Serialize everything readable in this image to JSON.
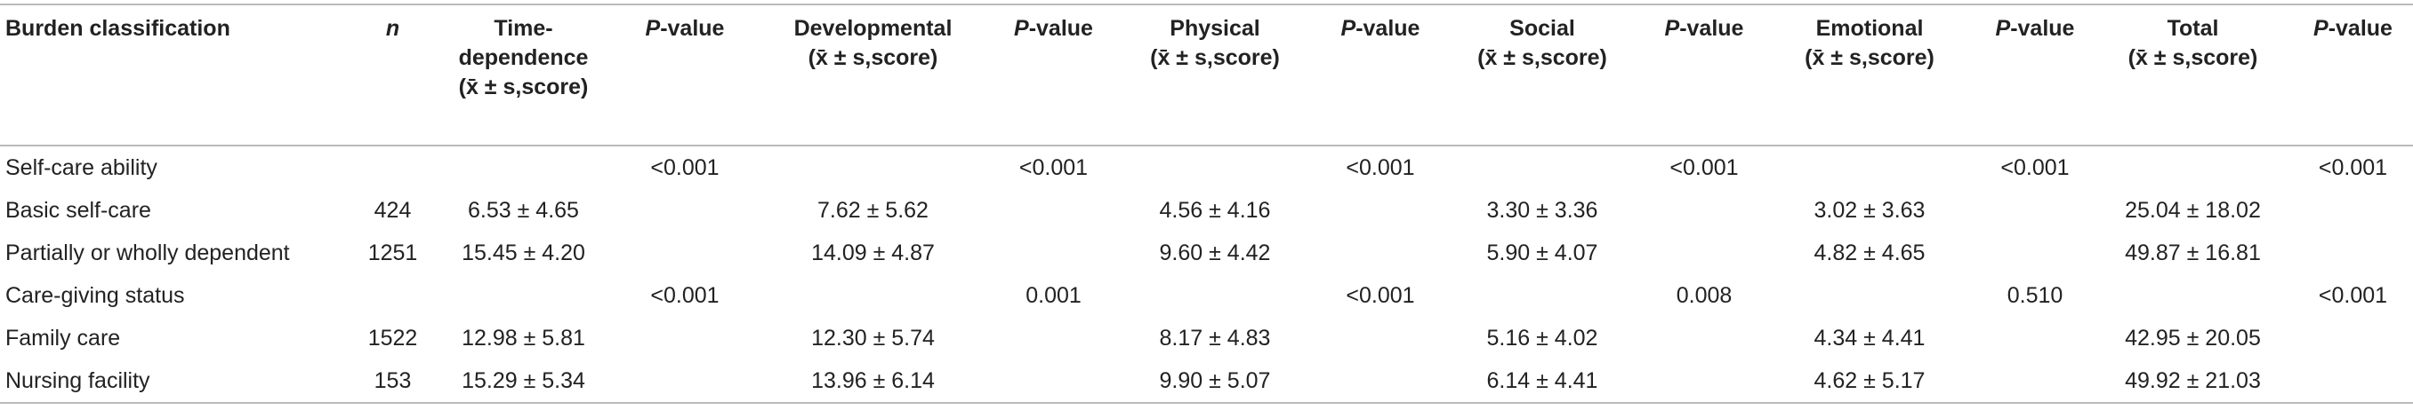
{
  "table": {
    "header": [
      "Burden classification",
      "n",
      "Time-\ndependence\n(x̄ ± s,score)",
      "P-value",
      "Developmental\n(x̄ ± s,score)",
      "P-value",
      "Physical\n(x̄ ± s,score)",
      "P-value",
      "Social\n(x̄ ± s,score)",
      "P-value",
      "Emotional\n(x̄ ± s,score)",
      "P-value",
      "Total\n(x̄ ± s,score)",
      "P-value"
    ],
    "rows": [
      [
        "Self-care ability",
        null,
        null,
        "<0.001",
        null,
        "<0.001",
        null,
        "<0.001",
        null,
        "<0.001",
        null,
        "<0.001",
        null,
        "<0.001"
      ],
      [
        "Basic self-care",
        "424",
        "6.53 ± 4.65",
        null,
        "7.62 ± 5.62",
        null,
        "4.56 ± 4.16",
        null,
        "3.30 ± 3.36",
        null,
        "3.02 ± 3.63",
        null,
        "25.04 ± 18.02",
        null
      ],
      [
        "Partially or wholly dependent",
        "1251",
        "15.45 ± 4.20",
        null,
        "14.09 ± 4.87",
        null,
        "9.60 ± 4.42",
        null,
        "5.90 ± 4.07",
        null,
        "4.82 ± 4.65",
        null,
        "49.87 ± 16.81",
        null
      ],
      [
        "Care-giving status",
        null,
        null,
        "<0.001",
        null,
        "0.001",
        null,
        "<0.001",
        null,
        "0.008",
        null,
        "0.510",
        null,
        "<0.001"
      ],
      [
        "Family care",
        "1522",
        "12.98 ± 5.81",
        null,
        "12.30 ± 5.74",
        null,
        "8.17 ± 4.83",
        null,
        "5.16 ± 4.02",
        null,
        "4.34 ± 4.41",
        null,
        "42.95 ± 20.05",
        null
      ],
      [
        "Nursing facility",
        "153",
        "15.29 ± 5.34",
        null,
        "13.96 ± 6.14",
        null,
        "9.90 ± 5.07",
        null,
        "6.14 ± 4.41",
        null,
        "4.62 ± 5.17",
        null,
        "49.92 ± 21.03",
        null
      ]
    ]
  }
}
